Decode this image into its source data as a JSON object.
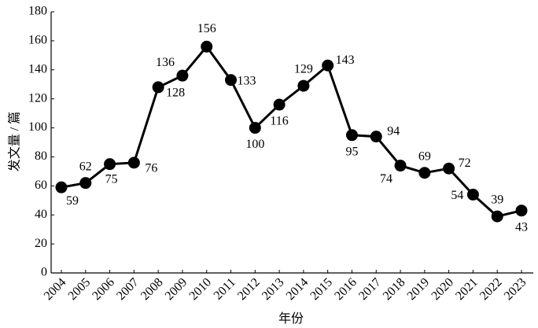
{
  "chart_data": {
    "type": "line",
    "xlabel": "年份",
    "ylabel": "发文量 / 篇",
    "categories": [
      "2004",
      "2005",
      "2006",
      "2007",
      "2008",
      "2009",
      "2010",
      "2011",
      "2012",
      "2013",
      "2014",
      "2015",
      "2016",
      "2017",
      "2018",
      "2019",
      "2020",
      "2021",
      "2022",
      "2023"
    ],
    "values": [
      59,
      62,
      75,
      76,
      128,
      136,
      156,
      133,
      100,
      116,
      129,
      143,
      95,
      94,
      74,
      69,
      72,
      54,
      39,
      43
    ],
    "color": "#000000",
    "ylim": [
      0,
      180
    ],
    "yticks": [
      0,
      20,
      40,
      60,
      80,
      100,
      120,
      140,
      160,
      180
    ],
    "grid": false
  }
}
